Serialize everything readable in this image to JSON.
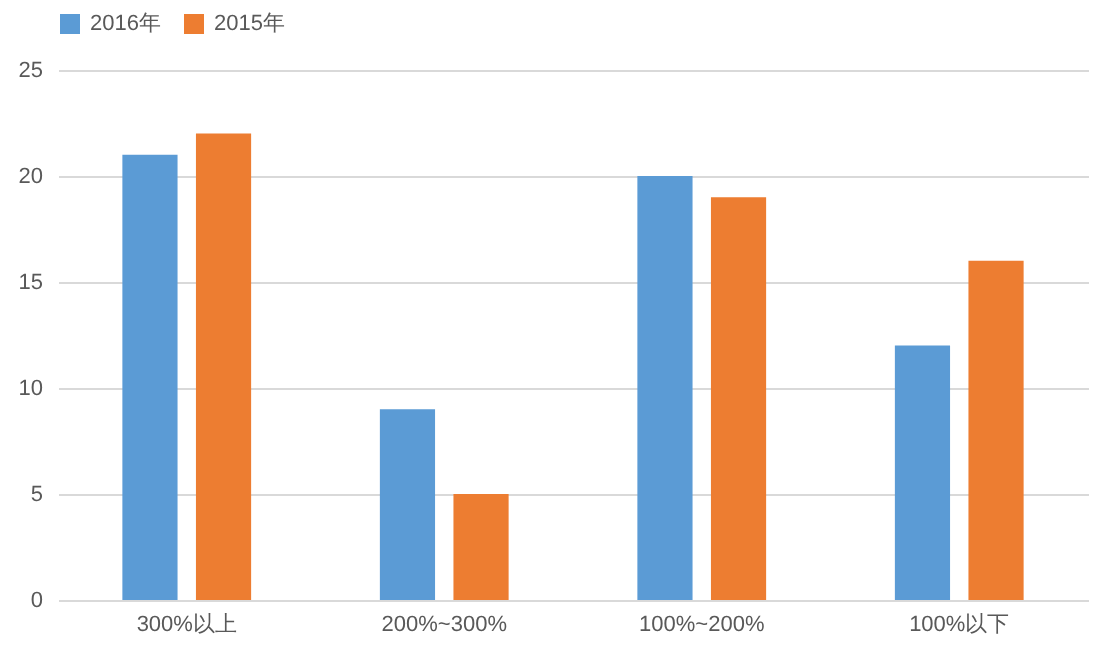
{
  "chart_data": {
    "type": "bar",
    "categories": [
      "300%以上",
      "200%~300%",
      "100%~200%",
      "100%以下"
    ],
    "series": [
      {
        "name": "2016年",
        "color": "#5b9bd5",
        "values": [
          21,
          9,
          20,
          12
        ]
      },
      {
        "name": "2015年",
        "color": "#ed7d31",
        "values": [
          22,
          5,
          19,
          16
        ]
      }
    ],
    "ylim": [
      0,
      25
    ],
    "yticks": [
      0,
      5,
      10,
      15,
      20,
      25
    ],
    "grid": "y",
    "legend": "top"
  }
}
